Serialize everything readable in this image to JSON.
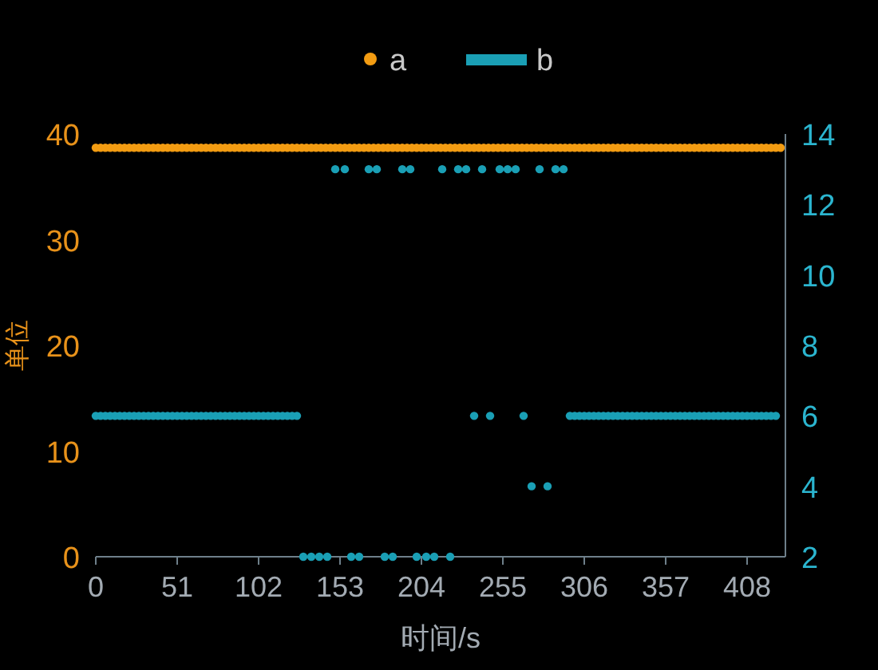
{
  "chart_data": {
    "type": "scatter",
    "xlabel": "时间/s",
    "ylabel": "单位",
    "xlim": [
      0,
      432
    ],
    "xticks": [
      0,
      51,
      102,
      153,
      204,
      255,
      306,
      357,
      408
    ],
    "ylim": [
      0,
      40
    ],
    "yticks": [
      0,
      10,
      20,
      30,
      40
    ],
    "y2lim": [
      2,
      14
    ],
    "y2ticks": [
      2,
      4,
      6,
      8,
      10,
      12,
      14
    ],
    "legend": "top",
    "grid": false,
    "marker": "circle",
    "series": [
      {
        "name": "a",
        "color": "#f39c12",
        "x": [
          0,
          3,
          6,
          9,
          12,
          15,
          18,
          21,
          24,
          27,
          30,
          33,
          36,
          39,
          42,
          45,
          48,
          51,
          54,
          57,
          60,
          63,
          66,
          69,
          72,
          75,
          78,
          81,
          84,
          87,
          90,
          93,
          96,
          99,
          102,
          105,
          108,
          111,
          114,
          117,
          120,
          123,
          126,
          129,
          132,
          135,
          138,
          141,
          144,
          147,
          150,
          153,
          156,
          159,
          162,
          165,
          168,
          171,
          174,
          177,
          180,
          183,
          186,
          189,
          192,
          195,
          198,
          201,
          204,
          207,
          210,
          213,
          216,
          219,
          222,
          225,
          228,
          231,
          234,
          237,
          240,
          243,
          246,
          249,
          252,
          255,
          258,
          261,
          264,
          267,
          270,
          273,
          276,
          279,
          282,
          285,
          288,
          291,
          294,
          297,
          300,
          303,
          306,
          309,
          312,
          315,
          318,
          321,
          324,
          327,
          330,
          333,
          336,
          339,
          342,
          345,
          348,
          351,
          354,
          357,
          360,
          363,
          366,
          369,
          372,
          375,
          378,
          381,
          384,
          387,
          390,
          393,
          396,
          399,
          402,
          405,
          408,
          411,
          414,
          417,
          420,
          423,
          426,
          429
        ],
        "values": [
          38.7,
          38.7,
          38.7,
          38.7,
          38.7,
          38.7,
          38.7,
          38.7,
          38.7,
          38.7,
          38.7,
          38.7,
          38.7,
          38.7,
          38.7,
          38.7,
          38.7,
          38.7,
          38.7,
          38.7,
          38.7,
          38.7,
          38.7,
          38.7,
          38.7,
          38.7,
          38.7,
          38.7,
          38.7,
          38.7,
          38.7,
          38.7,
          38.7,
          38.7,
          38.7,
          38.7,
          38.7,
          38.7,
          38.7,
          38.7,
          38.7,
          38.7,
          38.7,
          38.7,
          38.7,
          38.7,
          38.7,
          38.7,
          38.7,
          38.7,
          38.7,
          38.7,
          38.7,
          38.7,
          38.7,
          38.7,
          38.7,
          38.7,
          38.7,
          38.7,
          38.7,
          38.7,
          38.7,
          38.7,
          38.7,
          38.7,
          38.7,
          38.7,
          38.7,
          38.7,
          38.7,
          38.7,
          38.7,
          38.7,
          38.7,
          38.7,
          38.7,
          38.7,
          38.7,
          38.7,
          38.7,
          38.7,
          38.7,
          38.7,
          38.7,
          38.7,
          38.7,
          38.7,
          38.7,
          38.7,
          38.7,
          38.7,
          38.7,
          38.7,
          38.7,
          38.7,
          38.7,
          38.7,
          38.7,
          38.7,
          38.7,
          38.7,
          38.7,
          38.7,
          38.7,
          38.7,
          38.7,
          38.7,
          38.7,
          38.7,
          38.7,
          38.7,
          38.7,
          38.7,
          38.7,
          38.7,
          38.7,
          38.7,
          38.7,
          38.7,
          38.7,
          38.7,
          38.7,
          38.7,
          38.7,
          38.7,
          38.7,
          38.7,
          38.7,
          38.7,
          38.7,
          38.7,
          38.7,
          38.7,
          38.7,
          38.7,
          38.7,
          38.7,
          38.7,
          38.7,
          38.7,
          38.7,
          38.7,
          38.7
        ]
      },
      {
        "name": "b",
        "color": "#1a9fb5",
        "axis": "y2",
        "x": [
          0,
          3,
          6,
          9,
          12,
          15,
          18,
          21,
          24,
          27,
          30,
          33,
          36,
          39,
          42,
          45,
          48,
          51,
          54,
          57,
          60,
          63,
          66,
          69,
          72,
          75,
          78,
          81,
          84,
          87,
          90,
          93,
          96,
          99,
          102,
          105,
          108,
          111,
          114,
          117,
          120,
          123,
          126,
          130,
          135,
          140,
          145,
          150,
          156,
          160,
          165,
          171,
          176,
          181,
          186,
          192,
          197,
          201,
          207,
          212,
          217,
          222,
          227,
          232,
          237,
          242,
          247,
          253,
          258,
          263,
          268,
          273,
          278,
          283,
          288,
          293,
          297,
          300,
          303,
          306,
          309,
          312,
          315,
          318,
          321,
          324,
          327,
          330,
          333,
          336,
          339,
          342,
          345,
          348,
          351,
          354,
          357,
          360,
          363,
          366,
          369,
          372,
          375,
          378,
          381,
          384,
          387,
          390,
          393,
          396,
          399,
          402,
          405,
          408,
          411,
          414,
          417,
          420,
          423,
          426
        ],
        "values": [
          6,
          6,
          6,
          6,
          6,
          6,
          6,
          6,
          6,
          6,
          6,
          6,
          6,
          6,
          6,
          6,
          6,
          6,
          6,
          6,
          6,
          6,
          6,
          6,
          6,
          6,
          6,
          6,
          6,
          6,
          6,
          6,
          6,
          6,
          6,
          6,
          6,
          6,
          6,
          6,
          6,
          6,
          6,
          2,
          2,
          2,
          2,
          13,
          13,
          2,
          2,
          13,
          13,
          2,
          2,
          13,
          13,
          2,
          2,
          2,
          13,
          2,
          13,
          13,
          6,
          13,
          6,
          13,
          13,
          13,
          6,
          4,
          13,
          4,
          13,
          13,
          6,
          6,
          6,
          6,
          6,
          6,
          6,
          6,
          6,
          6,
          6,
          6,
          6,
          6,
          6,
          6,
          6,
          6,
          6,
          6,
          6,
          6,
          6,
          6,
          6,
          6,
          6,
          6,
          6,
          6,
          6,
          6,
          6,
          6,
          6,
          6,
          6,
          6,
          6,
          6,
          6,
          6,
          6,
          6
        ]
      }
    ]
  }
}
